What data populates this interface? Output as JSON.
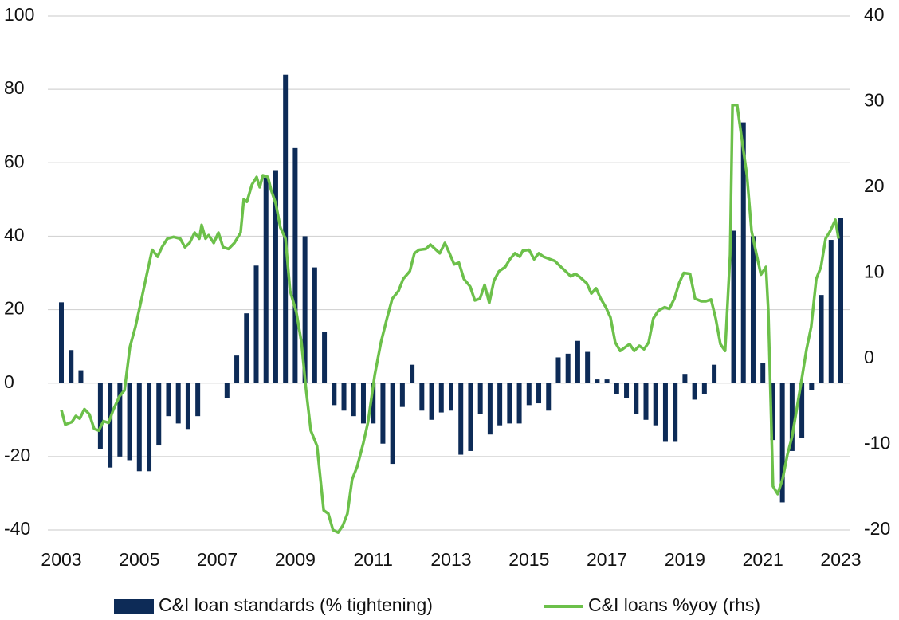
{
  "chart_data": {
    "type": "bar",
    "xlim": [
      2003,
      2023
    ],
    "xticks": [
      2003,
      2005,
      2007,
      2009,
      2011,
      2013,
      2015,
      2017,
      2019,
      2021,
      2023
    ],
    "ylim": [
      -40,
      100
    ],
    "yticks": [
      -40,
      -20,
      0,
      20,
      40,
      60,
      80,
      100
    ],
    "y2lim": [
      -20,
      40
    ],
    "y2ticks": [
      -20,
      -10,
      0,
      10,
      20,
      30,
      40
    ],
    "grid": true,
    "legend": "bottom",
    "series": [
      {
        "name": "C&I loan standards (% tightening)",
        "type": "bar",
        "color": "#0d2b57",
        "x": [
          2003,
          2003.25,
          2003.5,
          2003.75,
          2004,
          2004.25,
          2004.5,
          2004.75,
          2005,
          2005.25,
          2005.5,
          2005.75,
          2006,
          2006.25,
          2006.5,
          2006.75,
          2007,
          2007.25,
          2007.5,
          2007.75,
          2008,
          2008.25,
          2008.5,
          2008.75,
          2009,
          2009.25,
          2009.5,
          2009.75,
          2010,
          2010.25,
          2010.5,
          2010.75,
          2011,
          2011.25,
          2011.5,
          2011.75,
          2012,
          2012.25,
          2012.5,
          2012.75,
          2013,
          2013.25,
          2013.5,
          2013.75,
          2014,
          2014.25,
          2014.5,
          2014.75,
          2015,
          2015.25,
          2015.5,
          2015.75,
          2016,
          2016.25,
          2016.5,
          2016.75,
          2017,
          2017.25,
          2017.5,
          2017.75,
          2018,
          2018.25,
          2018.5,
          2018.75,
          2019,
          2019.25,
          2019.5,
          2019.75,
          2020,
          2020.25,
          2020.5,
          2020.75,
          2021,
          2021.25,
          2021.5,
          2021.75,
          2022,
          2022.25,
          2022.5,
          2022.75,
          2023
        ],
        "values": [
          22,
          9,
          3.5,
          0,
          -18,
          -23,
          -20,
          -21,
          -24,
          -24,
          -17,
          -9,
          -11,
          -12.5,
          -9,
          0,
          0,
          -4,
          7.5,
          19,
          32,
          56,
          58,
          84,
          64,
          40,
          31.5,
          14,
          -6,
          -7.5,
          -9,
          -11,
          -11,
          -16.5,
          -22,
          -6.5,
          5,
          -7.5,
          -10,
          -8,
          -7.5,
          -19.5,
          -18.5,
          -8.5,
          -14,
          -11.5,
          -11,
          -11,
          -6,
          -5.5,
          -7.5,
          7,
          8,
          11.5,
          8.5,
          1,
          1,
          -3,
          -4,
          -8.5,
          -10,
          -11.5,
          -16,
          -16,
          2.5,
          -4.5,
          -3,
          5,
          0,
          41.5,
          71,
          40,
          5.5,
          -15.5,
          -32.5,
          -18.5,
          -15,
          -2,
          24,
          39,
          45
        ]
      },
      {
        "name": "C&I loans %yoy (rhs)",
        "type": "line",
        "axis": "y2",
        "color": "#6cc04a",
        "x": [
          2003.0,
          2003.1,
          2003.27,
          2003.37,
          2003.47,
          2003.59,
          2003.72,
          2003.84,
          2003.96,
          2004.08,
          2004.21,
          2004.33,
          2004.49,
          2004.62,
          2004.76,
          2004.9,
          2005.06,
          2005.19,
          2005.33,
          2005.47,
          2005.58,
          2005.72,
          2005.88,
          2006.05,
          2006.17,
          2006.29,
          2006.42,
          2006.54,
          2006.6,
          2006.7,
          2006.78,
          2006.91,
          2007.03,
          2007.15,
          2007.29,
          2007.44,
          2007.6,
          2007.68,
          2007.76,
          2007.89,
          2008.01,
          2008.09,
          2008.17,
          2008.3,
          2008.38,
          2008.5,
          2008.62,
          2008.75,
          2008.87,
          2009.03,
          2009.16,
          2009.28,
          2009.4,
          2009.56,
          2009.73,
          2009.85,
          2009.97,
          2010.1,
          2010.22,
          2010.34,
          2010.46,
          2010.59,
          2010.75,
          2010.87,
          2011.04,
          2011.2,
          2011.36,
          2011.49,
          2011.65,
          2011.77,
          2011.94,
          2012.06,
          2012.18,
          2012.35,
          2012.47,
          2012.59,
          2012.71,
          2012.84,
          2012.96,
          2013.08,
          2013.2,
          2013.33,
          2013.49,
          2013.61,
          2013.74,
          2013.86,
          2013.98,
          2014.1,
          2014.23,
          2014.39,
          2014.51,
          2014.64,
          2014.76,
          2014.84,
          2015.0,
          2015.13,
          2015.25,
          2015.37,
          2015.54,
          2015.66,
          2015.82,
          2015.94,
          2016.07,
          2016.19,
          2016.31,
          2016.48,
          2016.6,
          2016.72,
          2016.84,
          2016.97,
          2017.09,
          2017.21,
          2017.34,
          2017.46,
          2017.58,
          2017.7,
          2017.83,
          2017.95,
          2018.07,
          2018.19,
          2018.32,
          2018.48,
          2018.6,
          2018.73,
          2018.85,
          2018.97,
          2019.13,
          2019.26,
          2019.42,
          2019.54,
          2019.67,
          2019.79,
          2019.91,
          2020.03,
          2020.16,
          2020.22,
          2020.34,
          2020.46,
          2020.59,
          2020.71,
          2020.83,
          2020.95,
          2021.08,
          2021.14,
          2021.26,
          2021.38,
          2021.51,
          2021.63,
          2021.75,
          2021.88,
          2022.0,
          2022.12,
          2022.24,
          2022.37,
          2022.49,
          2022.61,
          2022.73,
          2022.86,
          2022.94
        ],
        "values": [
          -6,
          -7.7,
          -7.4,
          -6.7,
          -7,
          -5.9,
          -6.5,
          -8.2,
          -8.4,
          -7.3,
          -7.5,
          -6,
          -4.4,
          -3.7,
          1.4,
          3.7,
          7,
          9.8,
          12.7,
          11.9,
          13,
          14,
          14.2,
          14,
          13,
          13.5,
          14.7,
          14,
          15.6,
          14,
          14.4,
          13.5,
          14.7,
          13,
          12.8,
          13.5,
          14.7,
          18.6,
          18.3,
          20.3,
          21.2,
          20,
          21.4,
          21.2,
          19.7,
          18.1,
          15.3,
          14,
          7.9,
          5.4,
          1.9,
          -3.7,
          -8.4,
          -10.2,
          -17.7,
          -18.1,
          -20,
          -20.3,
          -19.5,
          -18.1,
          -14.1,
          -12.6,
          -9.8,
          -7.4,
          -1.9,
          1.9,
          4.8,
          7,
          7.9,
          9.3,
          10.2,
          12.3,
          12.7,
          12.8,
          13.3,
          12.8,
          12.3,
          13.5,
          12.3,
          11,
          11.2,
          9.3,
          8.4,
          6.8,
          7,
          8.6,
          6.5,
          9.1,
          10.2,
          10.7,
          11.6,
          12.3,
          11.9,
          12.6,
          12.7,
          11.6,
          12.3,
          11.9,
          11.6,
          11.4,
          10.7,
          10.2,
          9.6,
          9.9,
          9.5,
          8.8,
          7.6,
          8.2,
          7,
          6,
          4.8,
          1.9,
          0.9,
          1.3,
          1.7,
          0.9,
          1.5,
          1.1,
          1.9,
          4.7,
          5.6,
          6,
          5.8,
          7,
          8.8,
          10,
          9.9,
          7,
          6.7,
          6.7,
          6.9,
          4.7,
          1.7,
          0.9,
          12.1,
          29.6,
          29.6,
          25.6,
          21.4,
          14.9,
          12.3,
          9.8,
          10.7,
          5.6,
          -14.9,
          -15.8,
          -14,
          -11.2,
          -9.1,
          -5.6,
          -2.3,
          1.1,
          3.7,
          9.3,
          10.7,
          14,
          14.9,
          16.2,
          14
        ]
      }
    ]
  }
}
